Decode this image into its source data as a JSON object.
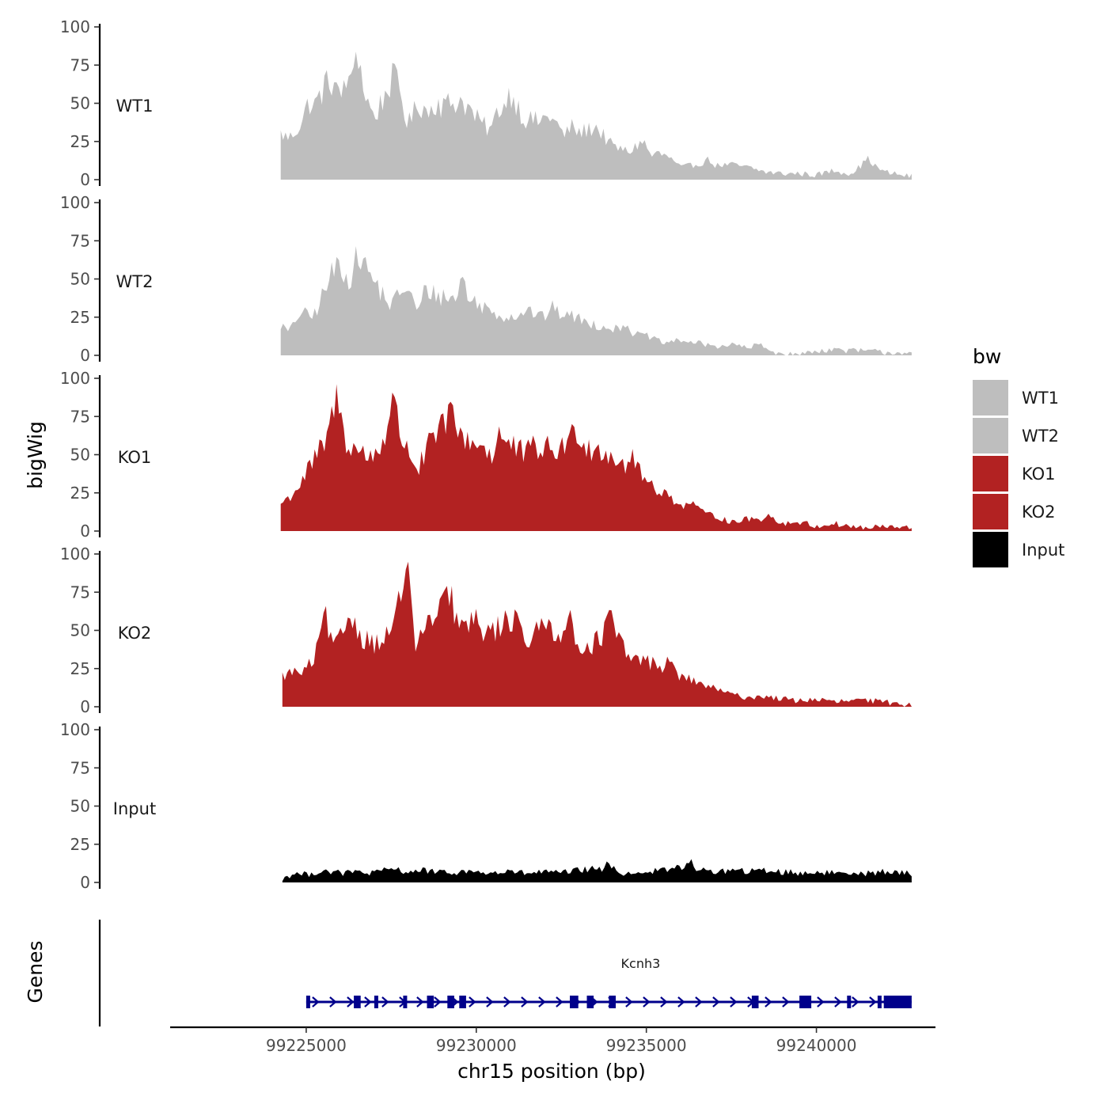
{
  "chart_data": {
    "type": "area",
    "title": "",
    "ylabel": "bigWig",
    "xlabel": "chr15 position (bp)",
    "genes_label": "Genes",
    "xlim": [
      99221000,
      99243500
    ],
    "ylim": [
      0,
      100
    ],
    "y_ticks": [
      "0",
      "25",
      "50",
      "75",
      "100"
    ],
    "x_ticks": [
      {
        "value": 99225000,
        "label": "99225000"
      },
      {
        "value": 99230000,
        "label": "99230000"
      },
      {
        "value": 99235000,
        "label": "99235000"
      },
      {
        "value": 99240000,
        "label": "99240000"
      }
    ],
    "legend": {
      "title": "bw",
      "entries": [
        {
          "label": "WT1",
          "color": "#bebebe"
        },
        {
          "label": "WT2",
          "color": "#bebebe"
        },
        {
          "label": "KO1",
          "color": "#b22222"
        },
        {
          "label": "KO2",
          "color": "#b22222"
        },
        {
          "label": "Input",
          "color": "#000000"
        }
      ]
    },
    "series": [
      {
        "name": "WT1",
        "color": "#bebebe",
        "x_start": 99224250,
        "x_end": 99242800,
        "anchors": [
          [
            99224250,
            30
          ],
          [
            99224500,
            27
          ],
          [
            99224800,
            35
          ],
          [
            99225200,
            45
          ],
          [
            99225500,
            60
          ],
          [
            99225800,
            66
          ],
          [
            99226000,
            50
          ],
          [
            99226150,
            70
          ],
          [
            99226300,
            54
          ],
          [
            99226500,
            78
          ],
          [
            99226700,
            58
          ],
          [
            99227000,
            40
          ],
          [
            99227500,
            65
          ],
          [
            99228000,
            36
          ],
          [
            99228300,
            50
          ],
          [
            99228600,
            44
          ],
          [
            99228900,
            55
          ],
          [
            99229200,
            50
          ],
          [
            99229600,
            52
          ],
          [
            99230000,
            40
          ],
          [
            99230500,
            30
          ],
          [
            99231000,
            58
          ],
          [
            99231400,
            40
          ],
          [
            99231800,
            38
          ],
          [
            99232200,
            42
          ],
          [
            99232600,
            28
          ],
          [
            99233000,
            30
          ],
          [
            99233500,
            35
          ],
          [
            99234000,
            22
          ],
          [
            99234500,
            18
          ],
          [
            99234900,
            26
          ],
          [
            99235200,
            12
          ],
          [
            99235600,
            16
          ],
          [
            99236000,
            8
          ],
          [
            99236500,
            10
          ],
          [
            99237000,
            9
          ],
          [
            99237500,
            10
          ],
          [
            99238000,
            8
          ],
          [
            99238500,
            5
          ],
          [
            99239000,
            4
          ],
          [
            99239500,
            4
          ],
          [
            99240000,
            3
          ],
          [
            99240500,
            6
          ],
          [
            99241000,
            4
          ],
          [
            99241500,
            12
          ],
          [
            99242000,
            5
          ],
          [
            99242500,
            3
          ],
          [
            99242800,
            2
          ]
        ],
        "peaks": [
          [
            99225050,
            8
          ],
          [
            99226450,
            12
          ],
          [
            99227700,
            10
          ],
          [
            99229000,
            -5
          ],
          [
            99230600,
            9
          ],
          [
            99232800,
            6
          ],
          [
            99235300,
            5
          ],
          [
            99236800,
            4
          ],
          [
            99241500,
            2
          ]
        ]
      },
      {
        "name": "WT2",
        "color": "#bebebe",
        "x_start": 99224250,
        "x_end": 99242800,
        "anchors": [
          [
            99224250,
            20
          ],
          [
            99224500,
            15
          ],
          [
            99224800,
            28
          ],
          [
            99225200,
            25
          ],
          [
            99225500,
            40
          ],
          [
            99225800,
            55
          ],
          [
            99226000,
            62
          ],
          [
            99226200,
            50
          ],
          [
            99226500,
            60
          ],
          [
            99226800,
            55
          ],
          [
            99227100,
            45
          ],
          [
            99227500,
            32
          ],
          [
            99227900,
            46
          ],
          [
            99228300,
            28
          ],
          [
            99228700,
            40
          ],
          [
            99229200,
            38
          ],
          [
            99229600,
            33
          ],
          [
            99230000,
            35
          ],
          [
            99230500,
            28
          ],
          [
            99231000,
            25
          ],
          [
            99231500,
            30
          ],
          [
            99232000,
            24
          ],
          [
            99232500,
            28
          ],
          [
            99233000,
            24
          ],
          [
            99233500,
            20
          ],
          [
            99234000,
            18
          ],
          [
            99234500,
            14
          ],
          [
            99235000,
            13
          ],
          [
            99235500,
            8
          ],
          [
            99236000,
            10
          ],
          [
            99236500,
            8
          ],
          [
            99237000,
            6
          ],
          [
            99237500,
            7
          ],
          [
            99238000,
            5
          ],
          [
            99238500,
            4
          ],
          [
            99239000,
            1
          ],
          [
            99239400,
            0
          ],
          [
            99240000,
            3
          ],
          [
            99240500,
            4
          ],
          [
            99241000,
            3
          ],
          [
            99241500,
            3
          ],
          [
            99242000,
            2
          ],
          [
            99242500,
            2
          ],
          [
            99242800,
            1
          ]
        ],
        "peaks": [
          [
            99226600,
            6
          ],
          [
            99228500,
            9
          ],
          [
            99229600,
            18
          ],
          [
            99232200,
            6
          ],
          [
            99234400,
            6
          ],
          [
            99238300,
            3
          ]
        ]
      },
      {
        "name": "KO1",
        "color": "#b22222",
        "x_start": 99224250,
        "x_end": 99242800,
        "anchors": [
          [
            99224250,
            18
          ],
          [
            99224500,
            22
          ],
          [
            99224800,
            30
          ],
          [
            99225200,
            45
          ],
          [
            99225500,
            55
          ],
          [
            99225800,
            70
          ],
          [
            99226100,
            62
          ],
          [
            99226400,
            55
          ],
          [
            99226800,
            48
          ],
          [
            99227100,
            52
          ],
          [
            99227500,
            72
          ],
          [
            99227900,
            58
          ],
          [
            99228300,
            40
          ],
          [
            99228700,
            60
          ],
          [
            99229200,
            68
          ],
          [
            99229600,
            62
          ],
          [
            99230000,
            58
          ],
          [
            99230500,
            50
          ],
          [
            99231000,
            56
          ],
          [
            99231400,
            50
          ],
          [
            99231800,
            55
          ],
          [
            99232300,
            52
          ],
          [
            99232800,
            60
          ],
          [
            99233400,
            55
          ],
          [
            99233900,
            52
          ],
          [
            99234400,
            42
          ],
          [
            99234900,
            35
          ],
          [
            99235500,
            25
          ],
          [
            99236000,
            18
          ],
          [
            99236500,
            13
          ],
          [
            99237000,
            10
          ],
          [
            99237500,
            6
          ],
          [
            99238000,
            8
          ],
          [
            99238500,
            7
          ],
          [
            99239000,
            5
          ],
          [
            99239500,
            6
          ],
          [
            99240000,
            3
          ],
          [
            99240500,
            5
          ],
          [
            99241000,
            3
          ],
          [
            99241500,
            2
          ],
          [
            99242000,
            3
          ],
          [
            99242500,
            2
          ],
          [
            99242800,
            2
          ]
        ],
        "peaks": [
          [
            99225900,
            20
          ],
          [
            99227550,
            15
          ],
          [
            99229200,
            12
          ],
          [
            99230700,
            12
          ],
          [
            99233000,
            8
          ],
          [
            99234600,
            10
          ],
          [
            99236400,
            5
          ],
          [
            99238600,
            5
          ]
        ]
      },
      {
        "name": "KO2",
        "color": "#b22222",
        "x_start": 99224300,
        "x_end": 99242800,
        "anchors": [
          [
            99224300,
            20
          ],
          [
            99224600,
            23
          ],
          [
            99224900,
            22
          ],
          [
            99225200,
            30
          ],
          [
            99225500,
            45
          ],
          [
            99225800,
            38
          ],
          [
            99226100,
            45
          ],
          [
            99226400,
            55
          ],
          [
            99226700,
            45
          ],
          [
            99227000,
            42
          ],
          [
            99227300,
            45
          ],
          [
            99227600,
            48
          ],
          [
            99227900,
            70
          ],
          [
            99228200,
            42
          ],
          [
            99228500,
            50
          ],
          [
            99228900,
            62
          ],
          [
            99229200,
            58
          ],
          [
            99229600,
            52
          ],
          [
            99230000,
            55
          ],
          [
            99230400,
            48
          ],
          [
            99230800,
            55
          ],
          [
            99231200,
            52
          ],
          [
            99231600,
            42
          ],
          [
            99232000,
            55
          ],
          [
            99232500,
            48
          ],
          [
            99233000,
            40
          ],
          [
            99233500,
            42
          ],
          [
            99234000,
            50
          ],
          [
            99234500,
            32
          ],
          [
            99235000,
            30
          ],
          [
            99235500,
            26
          ],
          [
            99236000,
            20
          ],
          [
            99236500,
            16
          ],
          [
            99237000,
            12
          ],
          [
            99237500,
            8
          ],
          [
            99238000,
            6
          ],
          [
            99238500,
            7
          ],
          [
            99239000,
            5
          ],
          [
            99239500,
            4
          ],
          [
            99240000,
            5
          ],
          [
            99240500,
            3
          ],
          [
            99241000,
            4
          ],
          [
            99241500,
            4
          ],
          [
            99242000,
            3
          ],
          [
            99242500,
            2
          ],
          [
            99242800,
            1
          ]
        ],
        "peaks": [
          [
            99225550,
            16
          ],
          [
            99226200,
            10
          ],
          [
            99227650,
            12
          ],
          [
            99227950,
            27
          ],
          [
            99229200,
            18
          ],
          [
            99231200,
            12
          ],
          [
            99232700,
            15
          ],
          [
            99233900,
            10
          ],
          [
            99235700,
            6
          ]
        ]
      },
      {
        "name": "Input",
        "color": "#000000",
        "x_start": 99224300,
        "x_end": 99242800,
        "anchors": [
          [
            99224300,
            2
          ],
          [
            99224600,
            6
          ],
          [
            99225000,
            5
          ],
          [
            99225500,
            8
          ],
          [
            99226000,
            6
          ],
          [
            99226500,
            7
          ],
          [
            99227000,
            6
          ],
          [
            99227500,
            9
          ],
          [
            99228000,
            7
          ],
          [
            99228500,
            8
          ],
          [
            99229000,
            6
          ],
          [
            99229500,
            7
          ],
          [
            99230000,
            7
          ],
          [
            99230500,
            6
          ],
          [
            99231000,
            7
          ],
          [
            99231500,
            6
          ],
          [
            99232000,
            7
          ],
          [
            99232500,
            6
          ],
          [
            99233000,
            8
          ],
          [
            99233500,
            9
          ],
          [
            99234000,
            7
          ],
          [
            99234500,
            6
          ],
          [
            99235000,
            7
          ],
          [
            99235500,
            8
          ],
          [
            99236000,
            10
          ],
          [
            99236500,
            8
          ],
          [
            99237000,
            7
          ],
          [
            99237500,
            8
          ],
          [
            99238000,
            7
          ],
          [
            99238500,
            8
          ],
          [
            99239000,
            7
          ],
          [
            99239500,
            6
          ],
          [
            99240000,
            7
          ],
          [
            99240500,
            6
          ],
          [
            99241000,
            7
          ],
          [
            99241500,
            6
          ],
          [
            99242000,
            7
          ],
          [
            99242500,
            6
          ],
          [
            99242800,
            6
          ]
        ],
        "peaks": [
          [
            99233900,
            5
          ],
          [
            99236300,
            5
          ]
        ]
      }
    ],
    "gene": {
      "name": "Kcnh3",
      "color": "#00008b",
      "strand": "+",
      "start": 99225000,
      "end": 99242800,
      "exons": [
        [
          99225000,
          99225080
        ],
        [
          99226400,
          99226600
        ],
        [
          99227000,
          99227100
        ],
        [
          99227850,
          99227950
        ],
        [
          99228550,
          99228750
        ],
        [
          99229150,
          99229350
        ],
        [
          99229500,
          99229700
        ],
        [
          99232750,
          99233000
        ],
        [
          99233250,
          99233450
        ],
        [
          99233900,
          99234100
        ],
        [
          99238100,
          99238300
        ],
        [
          99239500,
          99239850
        ],
        [
          99240900,
          99240980
        ],
        [
          99241800,
          99241880
        ],
        [
          99241980,
          99242800
        ]
      ]
    }
  }
}
